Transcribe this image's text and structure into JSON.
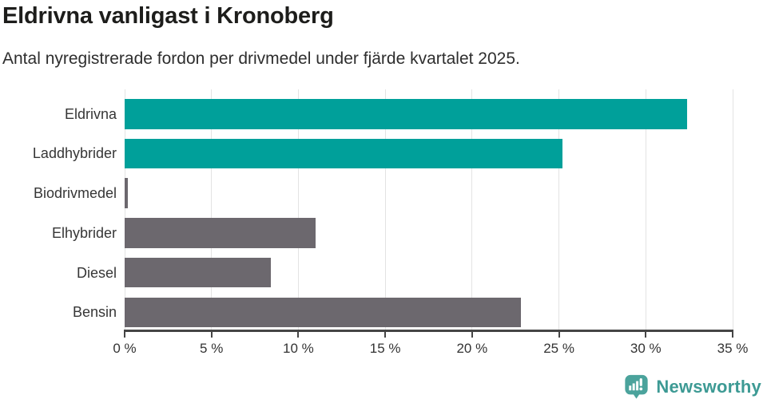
{
  "header": {
    "title": "Eldrivna vanligast i Kronoberg",
    "subtitle": "Antal nyregistrerade fordon per drivmedel under fjärde kvartalet 2025."
  },
  "chart_data": {
    "type": "bar",
    "orientation": "horizontal",
    "title": "Eldrivna vanligast i Kronoberg",
    "subtitle": "Antal nyregistrerade fordon per drivmedel under fjärde kvartalet 2025.",
    "categories": [
      "Eldrivna",
      "Laddhybrider",
      "Biodrivmedel",
      "Elhybrider",
      "Diesel",
      "Bensin"
    ],
    "values": [
      32.4,
      25.2,
      0.2,
      11.0,
      8.4,
      22.8
    ],
    "unit": "%",
    "bar_colors": [
      "#00a09a",
      "#00a09a",
      "#6c686e",
      "#6c686e",
      "#6c686e",
      "#6c686e"
    ],
    "x_ticks": [
      0,
      5,
      10,
      15,
      20,
      25,
      30,
      35
    ],
    "x_tick_labels": [
      "0 %",
      "5 %",
      "10 %",
      "15 %",
      "20 %",
      "25 %",
      "30 %",
      "35 %"
    ],
    "xlim": [
      0,
      35
    ],
    "grid": "vertical",
    "legend": "none",
    "value_labels": "none"
  },
  "footer": {
    "brand": "Newsworthy"
  },
  "colors": {
    "highlight_teal": "#00a09a",
    "default_gray": "#6c686e",
    "gridline": "#e3e3e3",
    "axis": "#454545",
    "title_text": "#1d1d1b",
    "body_text": "#363636",
    "logo_bubble": "#4ba39c",
    "logo_text": "#3d9a94"
  }
}
